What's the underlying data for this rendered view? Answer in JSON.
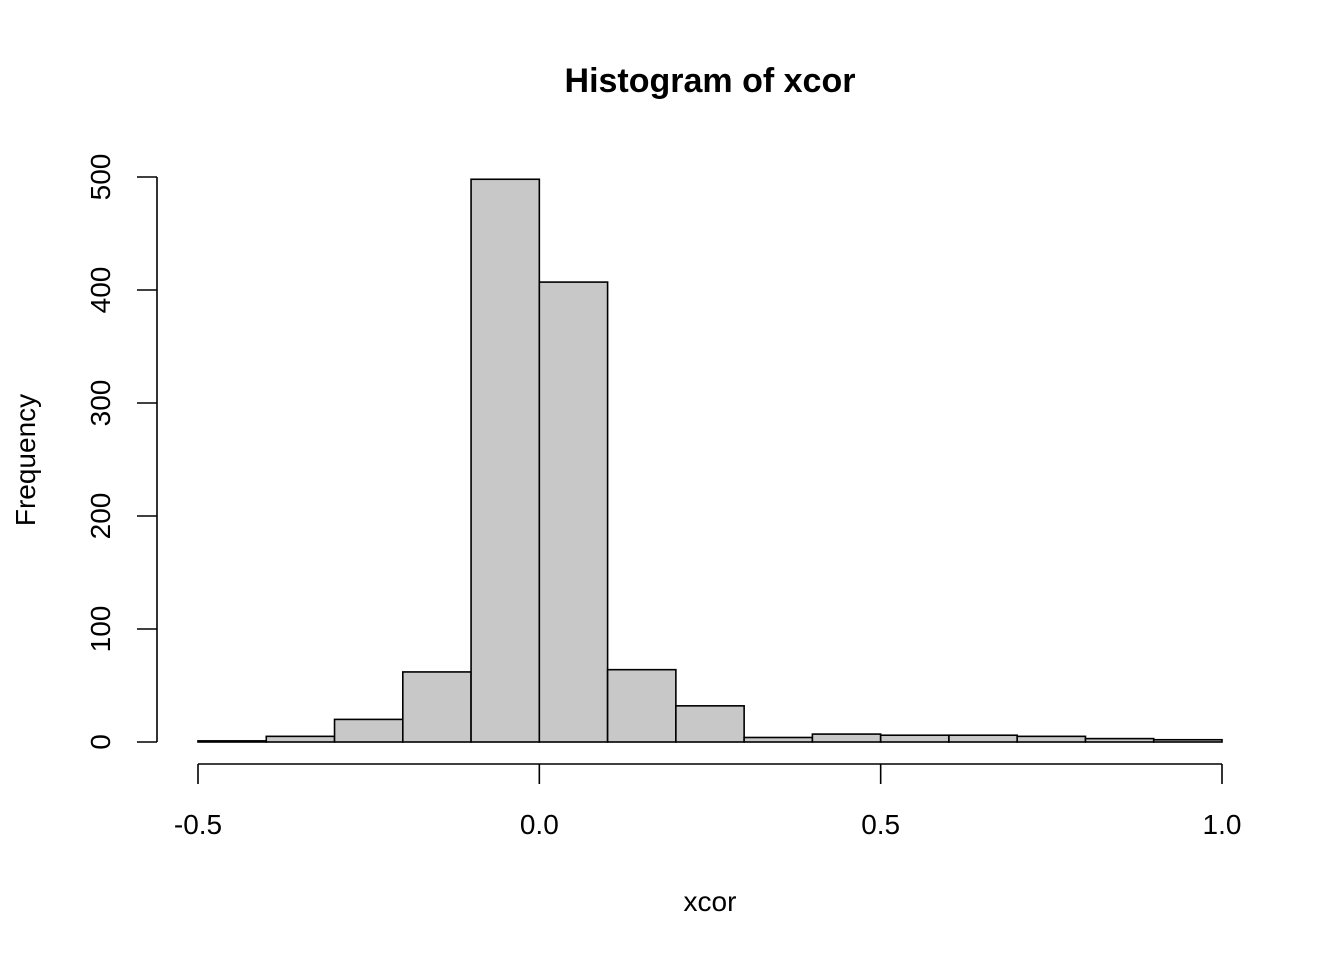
{
  "chart_data": {
    "type": "bar",
    "title": "Histogram of xcor",
    "xlabel": "xcor",
    "ylabel": "Frequency",
    "bin_edges": [
      -0.5,
      -0.4,
      -0.3,
      -0.2,
      -0.1,
      0.0,
      0.1,
      0.2,
      0.3,
      0.4,
      0.5,
      0.6,
      0.7,
      0.8,
      0.9,
      1.0
    ],
    "values": [
      1,
      5,
      20,
      62,
      498,
      407,
      64,
      32,
      4,
      7,
      6,
      6,
      5,
      3,
      2
    ],
    "xlim": [
      -0.5,
      1.0
    ],
    "ylim": [
      0,
      500
    ],
    "x_ticks": [
      -0.5,
      0.0,
      0.5,
      1.0
    ],
    "x_tick_labels": [
      "-0.5",
      "0.0",
      "0.5",
      "1.0"
    ],
    "y_ticks": [
      0,
      100,
      200,
      300,
      400,
      500
    ],
    "y_tick_labels": [
      "0",
      "100",
      "200",
      "300",
      "400",
      "500"
    ],
    "bar_color": "#c8c8c8",
    "grid": false,
    "legend": "none"
  }
}
